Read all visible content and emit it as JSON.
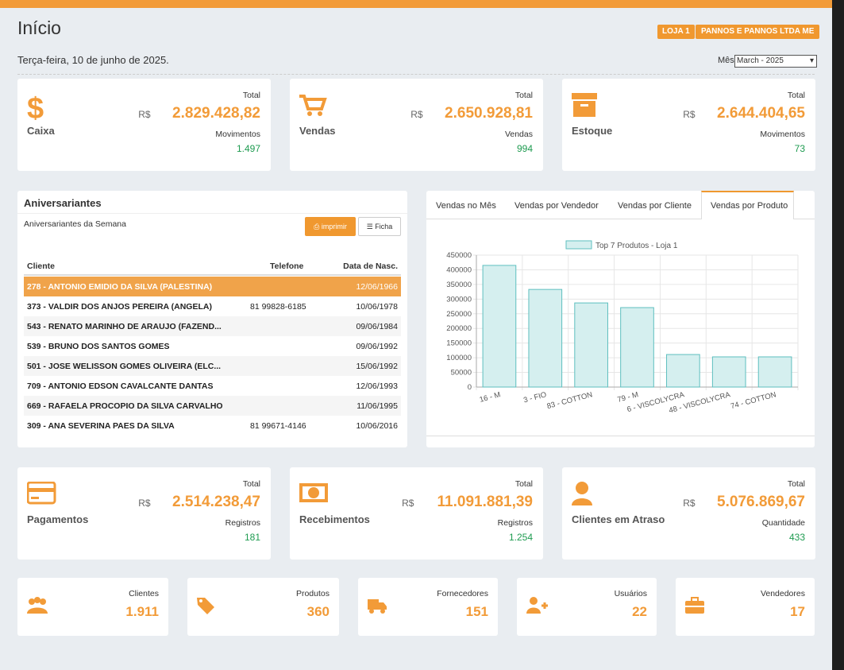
{
  "header": {
    "title": "Início",
    "date": "Terça-feira, 10 de junho de 2025.",
    "badges": [
      "LOJA 1",
      "PANNOS E PANNOS LTDA ME"
    ],
    "month_label": "Mês",
    "month_select": "March - 2025"
  },
  "summary_cards": [
    {
      "title": "Caixa",
      "total_label": "Total",
      "currency": "R$",
      "total": "2.829.428,82",
      "sub_label": "Movimentos",
      "sub_value": "1.497"
    },
    {
      "title": "Vendas",
      "total_label": "Total",
      "currency": "R$",
      "total": "2.650.928,81",
      "sub_label": "Vendas",
      "sub_value": "994"
    },
    {
      "title": "Estoque",
      "total_label": "Total",
      "currency": "R$",
      "total": "2.644.404,65",
      "sub_label": "Movimentos",
      "sub_value": "73"
    }
  ],
  "birthdays": {
    "title": "Aniversariantes",
    "subtitle": "Aniversariantes da Semana",
    "buttons": [
      "imprimir",
      "Ficha"
    ],
    "columns": [
      "Cliente",
      "Telefone",
      "Data de Nasc."
    ],
    "rows": [
      [
        "278 - ANTONIO EMIDIO DA SILVA (PALESTINA)",
        "",
        "12/06/1966"
      ],
      [
        "373 - VALDIR DOS ANJOS PEREIRA (ANGELA)",
        "81 99828-6185",
        "10/06/1978"
      ],
      [
        "543 - RENATO MARINHO DE ARAUJO (FAZEND...",
        "",
        "09/06/1984"
      ],
      [
        "539 - BRUNO DOS SANTOS GOMES",
        "",
        "09/06/1992"
      ],
      [
        "501 - JOSE WELISSON GOMES OLIVEIRA (ELC...",
        "",
        "15/06/1992"
      ],
      [
        "709 - ANTONIO EDSON CAVALCANTE DANTAS",
        "",
        "12/06/1993"
      ],
      [
        "669 - RAFAELA PROCOPIO DA SILVA CARVALHO",
        "",
        "11/06/1995"
      ],
      [
        "309 - ANA SEVERINA PAES DA SILVA",
        "81 99671-4146",
        "10/06/2016"
      ]
    ]
  },
  "tabs": [
    "Vendas no Mês",
    "Vendas por Vendedor",
    "Vendas por Cliente",
    "Vendas por Produto"
  ],
  "chart_data": {
    "type": "bar",
    "categories": [
      "16 - M",
      "3 - FIO",
      "83 - COTTON",
      "79 - M",
      "6 - VISCOLYCRA",
      "48 - VISCOLYCRA",
      "74 - COTTON"
    ],
    "series": [
      {
        "name": "Top 7 Produtos - Loja 1",
        "color": "#d5efef",
        "border_color": "#5ebfbf",
        "values": [
          415000,
          333000,
          287000,
          271000,
          111000,
          103000,
          103000
        ]
      }
    ],
    "ylim": [
      0,
      450000
    ],
    "yticks": [
      0,
      50000,
      100000,
      150000,
      200000,
      250000,
      300000,
      350000,
      400000,
      450000
    ],
    "grid": true
  },
  "finance_cards": [
    {
      "title": "Pagamentos",
      "total_label": "Total",
      "currency": "R$",
      "total": "2.514.238,47",
      "sub_label": "Registros",
      "sub_value": "181"
    },
    {
      "title": "Recebimentos",
      "total_label": "Total",
      "currency": "R$",
      "total": "11.091.881,39",
      "sub_label": "Registros",
      "sub_value": "1.254"
    },
    {
      "title": "Clientes em Atraso",
      "total_label": "Total",
      "currency": "R$",
      "total": "5.076.869,67",
      "sub_label": "Quantidade",
      "sub_value": "433"
    }
  ],
  "count_cards": [
    {
      "label": "Clientes",
      "value": "1.911"
    },
    {
      "label": "Produtos",
      "value": "360"
    },
    {
      "label": "Fornecedores",
      "value": "151"
    },
    {
      "label": "Usuários",
      "value": "22"
    },
    {
      "label": "Vendedores",
      "value": "17"
    }
  ]
}
